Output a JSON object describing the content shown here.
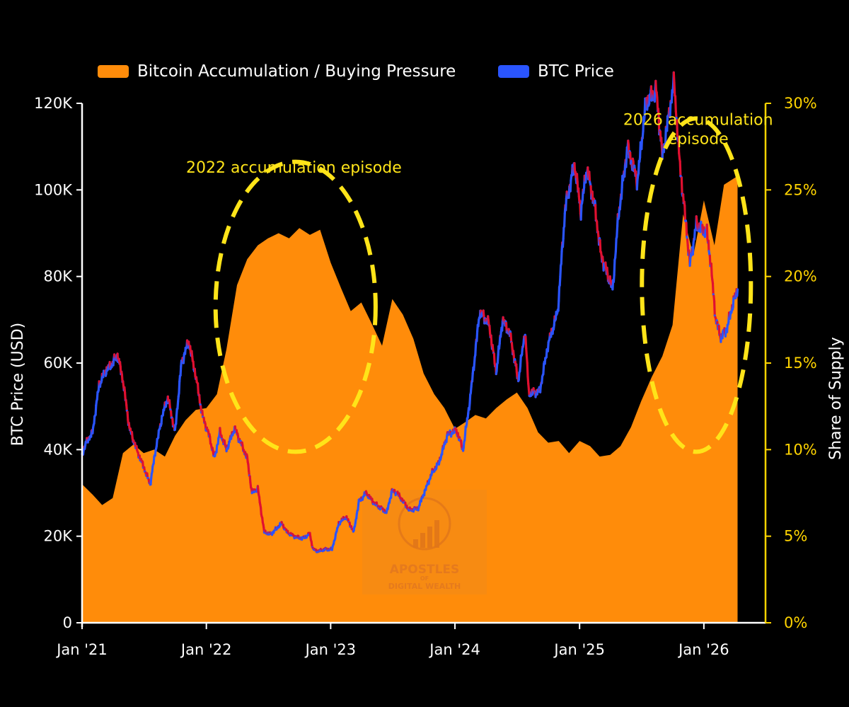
{
  "legend": [
    {
      "label": "Bitcoin Accumulation / Buying Pressure",
      "color": "#ff8c0a"
    },
    {
      "label": "BTC Price",
      "color": "#2a55ff"
    }
  ],
  "colors": {
    "background": "#000000",
    "accumulation": "#ff8c0a",
    "price_up": "#2a55ff",
    "price_down": "#e01030",
    "right_axis": "#ffd400",
    "annotation": "#ffe419"
  },
  "watermark": {
    "line1": "APOSTLES",
    "line2": "OF",
    "line3": "DIGITAL WEALTH"
  },
  "chart_data": {
    "type": "area",
    "y_left_label": "BTC Price (USD)",
    "y_right_label": "Share of Supply",
    "y_left_ticks": [
      "0",
      "20K",
      "40K",
      "60K",
      "80K",
      "100K",
      "120K"
    ],
    "y_right_ticks": [
      "0%",
      "5%",
      "10%",
      "15%",
      "20%",
      "25%",
      "30%"
    ],
    "x_tick_labels": [
      "Jan '21",
      "Jan '22",
      "Jan '23",
      "Jan '24",
      "Jan '25",
      "Jan '26"
    ],
    "y_left_range": [
      0,
      120000
    ],
    "y_right_range": [
      0,
      30
    ],
    "x_range": [
      "2021-01-01",
      "2026-07-01"
    ],
    "annotations": [
      {
        "text": [
          "2022 accumulation episode"
        ],
        "x": "2022-09-15",
        "y_usd": 104000
      },
      {
        "text": [
          "2026 accumulation",
          "episode"
        ],
        "x": "2025-12-15",
        "y_usd": 115000
      }
    ],
    "highlight_ellipses": [
      {
        "center_x": "2022-09-20",
        "center_usd": 73000,
        "x_halfspan_days": 235,
        "usd_halfspan": 33500
      },
      {
        "center_x": "2025-12-10",
        "center_usd": 78000,
        "x_halfspan_days": 160,
        "usd_halfspan": 38500
      }
    ],
    "series": [
      {
        "name": "Bitcoin Accumulation / Buying Pressure",
        "axis": "right",
        "unit": "%",
        "points": [
          [
            "2021-01-01",
            8.0
          ],
          [
            "2021-02-01",
            7.4
          ],
          [
            "2021-03-01",
            6.8
          ],
          [
            "2021-04-01",
            7.2
          ],
          [
            "2021-05-01",
            9.8
          ],
          [
            "2021-06-01",
            10.3
          ],
          [
            "2021-07-01",
            9.8
          ],
          [
            "2021-08-01",
            10.0
          ],
          [
            "2021-09-01",
            9.6
          ],
          [
            "2021-10-01",
            10.8
          ],
          [
            "2021-11-01",
            11.7
          ],
          [
            "2021-12-01",
            12.3
          ],
          [
            "2022-01-01",
            12.4
          ],
          [
            "2022-02-01",
            13.2
          ],
          [
            "2022-03-01",
            15.8
          ],
          [
            "2022-04-01",
            19.5
          ],
          [
            "2022-05-01",
            21.0
          ],
          [
            "2022-06-01",
            21.8
          ],
          [
            "2022-07-01",
            22.2
          ],
          [
            "2022-08-01",
            22.5
          ],
          [
            "2022-09-01",
            22.2
          ],
          [
            "2022-10-01",
            22.8
          ],
          [
            "2022-11-01",
            22.4
          ],
          [
            "2022-12-01",
            22.7
          ],
          [
            "2023-01-01",
            20.8
          ],
          [
            "2023-02-01",
            19.3
          ],
          [
            "2023-03-01",
            18.0
          ],
          [
            "2023-04-01",
            18.5
          ],
          [
            "2023-05-01",
            17.3
          ],
          [
            "2023-06-01",
            16.0
          ],
          [
            "2023-07-01",
            18.7
          ],
          [
            "2023-08-01",
            17.8
          ],
          [
            "2023-09-01",
            16.4
          ],
          [
            "2023-10-01",
            14.4
          ],
          [
            "2023-11-01",
            13.2
          ],
          [
            "2023-12-01",
            12.4
          ],
          [
            "2024-01-01",
            11.2
          ],
          [
            "2024-02-01",
            11.6
          ],
          [
            "2024-03-01",
            12.0
          ],
          [
            "2024-04-01",
            11.8
          ],
          [
            "2024-05-01",
            12.4
          ],
          [
            "2024-06-01",
            12.9
          ],
          [
            "2024-07-01",
            13.3
          ],
          [
            "2024-08-01",
            12.4
          ],
          [
            "2024-09-01",
            11.0
          ],
          [
            "2024-10-01",
            10.4
          ],
          [
            "2024-11-01",
            10.5
          ],
          [
            "2024-12-01",
            9.8
          ],
          [
            "2025-01-01",
            10.5
          ],
          [
            "2025-02-01",
            10.2
          ],
          [
            "2025-03-01",
            9.6
          ],
          [
            "2025-04-01",
            9.7
          ],
          [
            "2025-05-01",
            10.2
          ],
          [
            "2025-06-01",
            11.3
          ],
          [
            "2025-07-01",
            12.8
          ],
          [
            "2025-08-01",
            14.2
          ],
          [
            "2025-09-01",
            15.4
          ],
          [
            "2025-10-01",
            17.2
          ],
          [
            "2025-11-01",
            23.6
          ],
          [
            "2025-12-01",
            21.2
          ],
          [
            "2026-01-01",
            24.4
          ],
          [
            "2026-02-01",
            21.8
          ],
          [
            "2026-03-01",
            25.3
          ],
          [
            "2026-04-10",
            25.8
          ]
        ]
      },
      {
        "name": "BTC Price",
        "axis": "left",
        "unit": "USD",
        "points": [
          [
            "2021-01-01",
            39000
          ],
          [
            "2021-01-15",
            42000
          ],
          [
            "2021-02-01",
            44000
          ],
          [
            "2021-02-20",
            55000
          ],
          [
            "2021-03-10",
            58000
          ],
          [
            "2021-04-01",
            60000
          ],
          [
            "2021-04-15",
            62000
          ],
          [
            "2021-05-01",
            56000
          ],
          [
            "2021-05-20",
            45000
          ],
          [
            "2021-06-10",
            40000
          ],
          [
            "2021-07-01",
            36000
          ],
          [
            "2021-07-20",
            32000
          ],
          [
            "2021-08-05",
            40000
          ],
          [
            "2021-08-25",
            48000
          ],
          [
            "2021-09-10",
            52000
          ],
          [
            "2021-10-01",
            44000
          ],
          [
            "2021-10-20",
            60000
          ],
          [
            "2021-11-10",
            65000
          ],
          [
            "2021-12-01",
            57000
          ],
          [
            "2021-12-20",
            48000
          ],
          [
            "2022-01-10",
            43000
          ],
          [
            "2022-01-25",
            38000
          ],
          [
            "2022-02-10",
            44000
          ],
          [
            "2022-03-01",
            40000
          ],
          [
            "2022-03-25",
            45000
          ],
          [
            "2022-04-10",
            42000
          ],
          [
            "2022-05-01",
            38000
          ],
          [
            "2022-05-15",
            30000
          ],
          [
            "2022-06-01",
            31000
          ],
          [
            "2022-06-20",
            21000
          ],
          [
            "2022-07-10",
            20500
          ],
          [
            "2022-08-10",
            23000
          ],
          [
            "2022-08-25",
            21000
          ],
          [
            "2022-09-15",
            20000
          ],
          [
            "2022-10-10",
            19500
          ],
          [
            "2022-11-01",
            20500
          ],
          [
            "2022-11-10",
            17000
          ],
          [
            "2022-11-25",
            16500
          ],
          [
            "2022-12-15",
            17000
          ],
          [
            "2023-01-05",
            17000
          ],
          [
            "2023-01-25",
            23000
          ],
          [
            "2023-02-15",
            24500
          ],
          [
            "2023-03-10",
            21000
          ],
          [
            "2023-03-25",
            28000
          ],
          [
            "2023-04-15",
            30000
          ],
          [
            "2023-05-10",
            27500
          ],
          [
            "2023-06-15",
            25500
          ],
          [
            "2023-06-30",
            30500
          ],
          [
            "2023-07-15",
            30000
          ],
          [
            "2023-08-20",
            26000
          ],
          [
            "2023-09-15",
            26500
          ],
          [
            "2023-10-25",
            34500
          ],
          [
            "2023-11-15",
            37000
          ],
          [
            "2023-12-10",
            43500
          ],
          [
            "2024-01-05",
            44500
          ],
          [
            "2024-01-25",
            40000
          ],
          [
            "2024-02-15",
            52000
          ],
          [
            "2024-03-14",
            72000
          ],
          [
            "2024-04-10",
            69000
          ],
          [
            "2024-05-01",
            58000
          ],
          [
            "2024-05-20",
            70000
          ],
          [
            "2024-06-10",
            67000
          ],
          [
            "2024-07-05",
            56000
          ],
          [
            "2024-07-25",
            67500
          ],
          [
            "2024-08-05",
            53000
          ],
          [
            "2024-09-06",
            53500
          ],
          [
            "2024-09-30",
            64000
          ],
          [
            "2024-10-29",
            72000
          ],
          [
            "2024-11-20",
            96000
          ],
          [
            "2024-12-17",
            106000
          ],
          [
            "2025-01-05",
            95000
          ],
          [
            "2025-01-22",
            105000
          ],
          [
            "2025-02-15",
            96000
          ],
          [
            "2025-03-05",
            85000
          ],
          [
            "2025-04-08",
            77000
          ],
          [
            "2025-04-25",
            94000
          ],
          [
            "2025-05-22",
            110000
          ],
          [
            "2025-06-20",
            102000
          ],
          [
            "2025-07-14",
            120000
          ],
          [
            "2025-08-14",
            123000
          ],
          [
            "2025-09-01",
            108000
          ],
          [
            "2025-10-06",
            125000
          ],
          [
            "2025-10-20",
            108000
          ],
          [
            "2025-11-21",
            83000
          ],
          [
            "2025-12-10",
            92000
          ],
          [
            "2026-01-10",
            90000
          ],
          [
            "2026-01-20",
            84000
          ],
          [
            "2026-02-05",
            70000
          ],
          [
            "2026-02-20",
            66000
          ],
          [
            "2026-03-10",
            68000
          ],
          [
            "2026-03-25",
            73000
          ],
          [
            "2026-04-10",
            77000
          ]
        ]
      }
    ]
  }
}
